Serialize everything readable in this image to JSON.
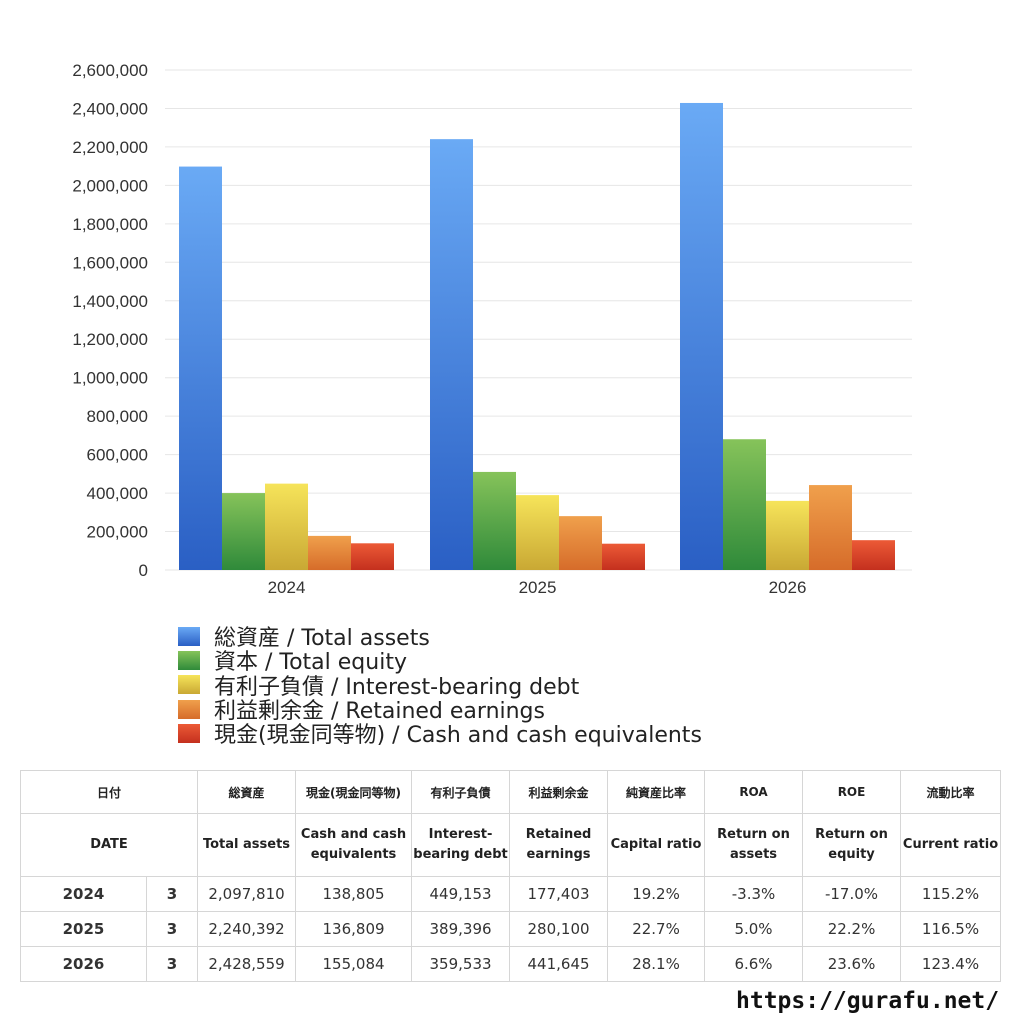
{
  "chart_data": {
    "type": "bar",
    "categories": [
      "2024",
      "2025",
      "2026"
    ],
    "ylim": [
      0,
      2600000
    ],
    "yticks": [
      0,
      200000,
      400000,
      600000,
      800000,
      1000000,
      1200000,
      1400000,
      1600000,
      1800000,
      2000000,
      2200000,
      2400000,
      2600000
    ],
    "ytick_labels": [
      "0",
      "200,000",
      "400,000",
      "600,000",
      "800,000",
      "1,000,000",
      "1,200,000",
      "1,400,000",
      "1,600,000",
      "1,800,000",
      "2,000,000",
      "2,200,000",
      "2,400,000",
      "2,600,000"
    ],
    "grid": true,
    "legend_position": "bottom-left",
    "series": [
      {
        "name": "総資産 / Total assets",
        "values": [
          2097810,
          2240392,
          2428559
        ],
        "color_top": "#6aaaf5",
        "color_bottom": "#2a5fc4"
      },
      {
        "name": "資本 / Total equity",
        "values": [
          400000,
          510000,
          680000
        ],
        "color_top": "#86c35a",
        "color_bottom": "#2f8a3a"
      },
      {
        "name": "有利子負債 / Interest-bearing debt",
        "values": [
          449153,
          389396,
          359533
        ],
        "color_top": "#f6e45a",
        "color_bottom": "#c9a834"
      },
      {
        "name": "利益剰余金 / Retained earnings",
        "values": [
          177403,
          280100,
          441645
        ],
        "color_top": "#f0a04c",
        "color_bottom": "#d66c2a"
      },
      {
        "name": "現金(現金同等物)  /  Cash and cash equivalents",
        "values": [
          138805,
          136809,
          155084
        ],
        "color_top": "#ec5a36",
        "color_bottom": "#c4301e"
      }
    ]
  },
  "table": {
    "header_jp": [
      "日付",
      "総資産",
      "現金(現金同等物)",
      "有利子負債",
      "利益剰余金",
      "純資産比率",
      "ROA",
      "ROE",
      "流動比率"
    ],
    "header_en": [
      "DATE",
      "Total assets",
      "Cash and cash equivalents",
      "Interest-bearing debt",
      "Retained earnings",
      "Capital ratio",
      "Return on assets",
      "Return on equity",
      "Current ratio"
    ],
    "rows": [
      {
        "year": "2024",
        "month": "3",
        "total_assets": "2,097,810",
        "cash": "138,805",
        "debt": "449,153",
        "retained": "177,403",
        "capital_ratio": "19.2%",
        "roa": "-3.3%",
        "roe": "-17.0%",
        "current_ratio": "115.2%"
      },
      {
        "year": "2025",
        "month": "3",
        "total_assets": "2,240,392",
        "cash": "136,809",
        "debt": "389,396",
        "retained": "280,100",
        "capital_ratio": "22.7%",
        "roa": "5.0%",
        "roe": "22.2%",
        "current_ratio": "116.5%"
      },
      {
        "year": "2026",
        "month": "3",
        "total_assets": "2,428,559",
        "cash": "155,084",
        "debt": "359,533",
        "retained": "441,645",
        "capital_ratio": "28.1%",
        "roa": "6.6%",
        "roe": "23.6%",
        "current_ratio": "123.4%"
      }
    ]
  },
  "site_url": "https://gurafu.net/"
}
